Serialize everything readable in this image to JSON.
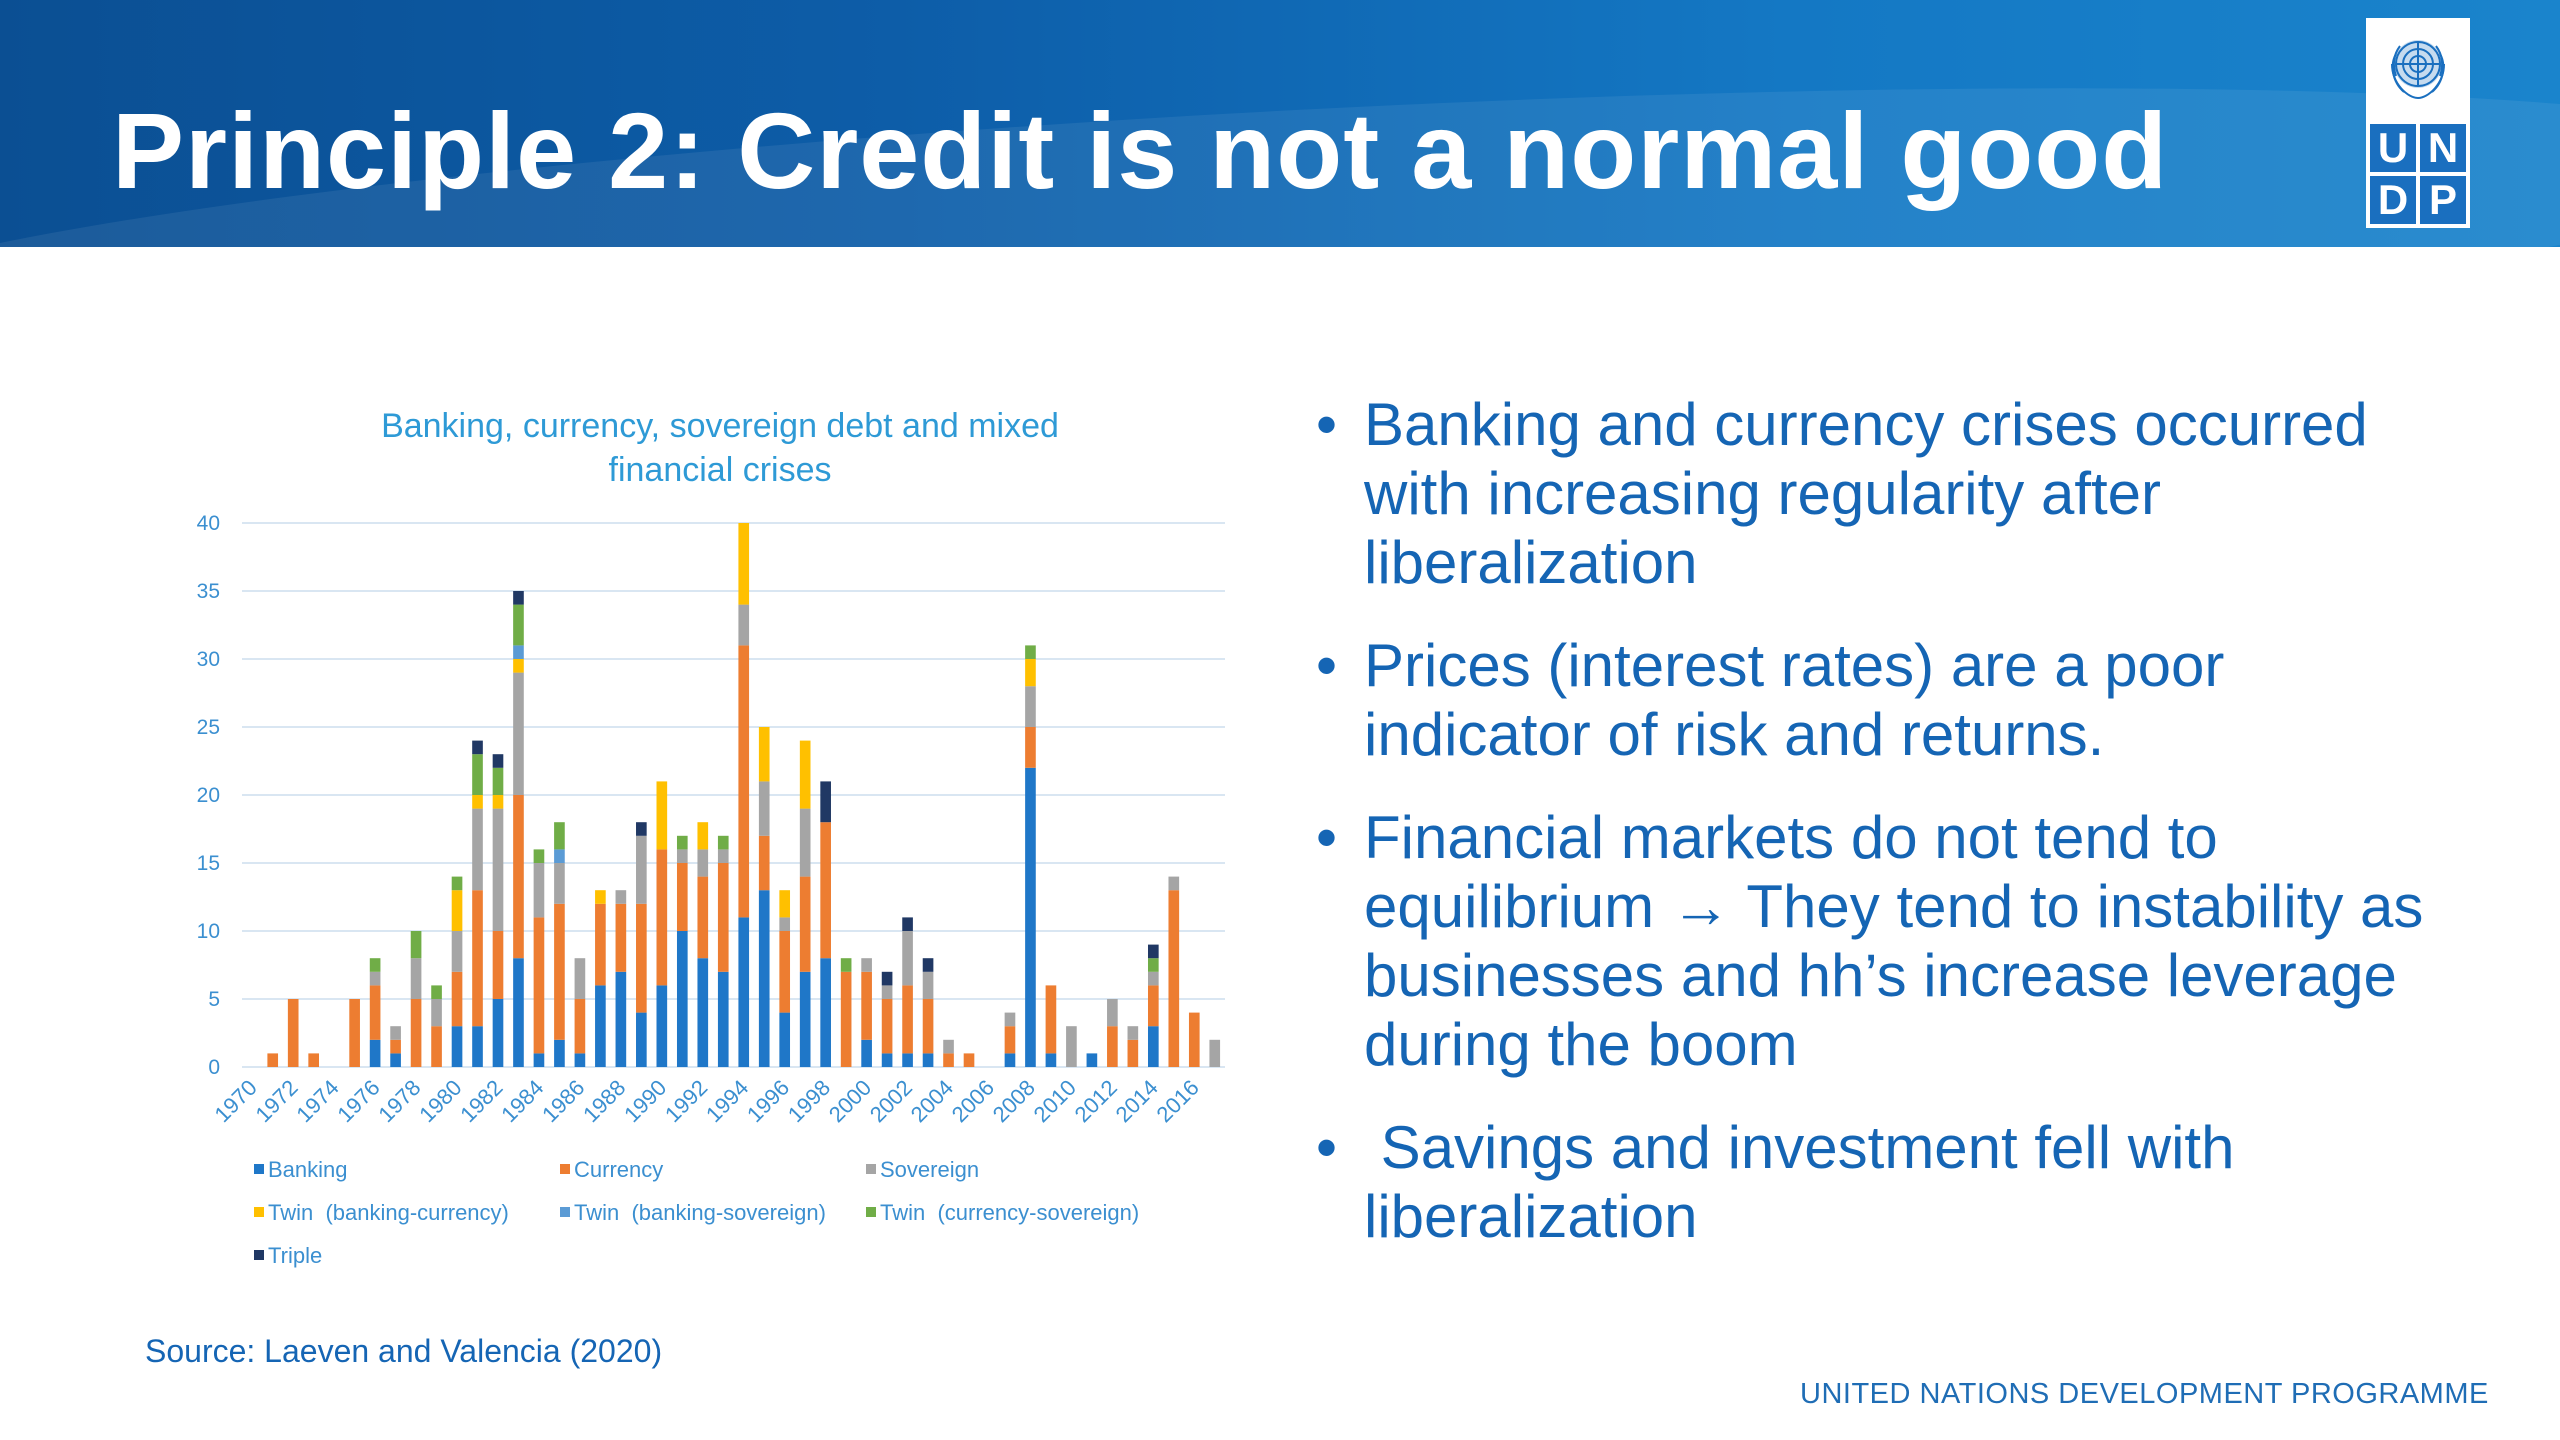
{
  "header": {
    "title": "Principle 2: Credit is not a normal good"
  },
  "logo": {
    "letters": [
      "U",
      "N",
      "D",
      "P"
    ]
  },
  "bullets": [
    "Banking and currency crises occurred with increasing regularity after liberalization",
    "Prices (interest rates) are a poor indicator of risk and returns.",
    "Financial markets do not tend to equilibrium → They tend to instability as businesses and hh’s increase leverage during the boom",
    " Savings and investment fell with liberalization"
  ],
  "bullet_symbol": "•",
  "source": "Source: Laeven and Valencia (2020)",
  "footer": "UNITED NATIONS DEVELOPMENT PROGRAMME",
  "chart_data": {
    "type": "bar",
    "stacked": true,
    "title": "Banking, currency, sovereign debt and mixed financial crises",
    "title_lines": [
      "Banking, currency, sovereign debt and mixed",
      "financial crises"
    ],
    "ylim": [
      0,
      40
    ],
    "yticks": [
      0,
      5,
      10,
      15,
      20,
      25,
      30,
      35,
      40
    ],
    "grid": true,
    "legend_position": "bottom",
    "categories": [
      1970,
      1971,
      1972,
      1973,
      1974,
      1975,
      1976,
      1977,
      1978,
      1979,
      1980,
      1981,
      1982,
      1983,
      1984,
      1985,
      1986,
      1987,
      1988,
      1989,
      1990,
      1991,
      1992,
      1993,
      1994,
      1995,
      1996,
      1997,
      1998,
      1999,
      2000,
      2001,
      2002,
      2003,
      2004,
      2005,
      2006,
      2007,
      2008,
      2009,
      2010,
      2011,
      2012,
      2013,
      2014,
      2015,
      2016,
      2017
    ],
    "xtick_labels": [
      "1970",
      "1972",
      "1974",
      "1976",
      "1978",
      "1980",
      "1982",
      "1984",
      "1986",
      "1988",
      "1990",
      "1992",
      "1994",
      "1996",
      "1998",
      "2000",
      "2002",
      "2004",
      "2006",
      "2008",
      "2010",
      "2012",
      "2014",
      "2016"
    ],
    "series": [
      {
        "name": "Banking",
        "color": "#1f77c8",
        "values": [
          0,
          0,
          0,
          0,
          0,
          0,
          2,
          1,
          0,
          0,
          3,
          3,
          5,
          8,
          1,
          2,
          1,
          6,
          7,
          4,
          6,
          10,
          8,
          7,
          11,
          13,
          4,
          7,
          8,
          0,
          2,
          1,
          1,
          1,
          0,
          0,
          0,
          1,
          22,
          1,
          0,
          1,
          0,
          0,
          3,
          0,
          0,
          0
        ]
      },
      {
        "name": "Currency",
        "color": "#ed7d31",
        "values": [
          0,
          1,
          5,
          1,
          0,
          5,
          4,
          1,
          5,
          3,
          4,
          10,
          5,
          12,
          10,
          10,
          4,
          6,
          5,
          8,
          10,
          5,
          6,
          8,
          20,
          4,
          6,
          7,
          10,
          7,
          5,
          4,
          5,
          4,
          1,
          1,
          0,
          2,
          3,
          5,
          0,
          0,
          3,
          2,
          3,
          13,
          4,
          0
        ]
      },
      {
        "name": "Sovereign",
        "color": "#a5a5a5",
        "values": [
          0,
          0,
          0,
          0,
          0,
          0,
          1,
          1,
          3,
          2,
          3,
          6,
          9,
          9,
          4,
          3,
          3,
          0,
          1,
          5,
          0,
          1,
          2,
          1,
          3,
          4,
          1,
          5,
          0,
          0,
          1,
          1,
          4,
          2,
          1,
          0,
          0,
          1,
          3,
          0,
          3,
          0,
          2,
          1,
          1,
          1,
          0,
          2
        ]
      },
      {
        "name": "Twin  (banking-currency)",
        "color": "#ffc000",
        "values": [
          0,
          0,
          0,
          0,
          0,
          0,
          0,
          0,
          0,
          0,
          3,
          1,
          1,
          1,
          0,
          0,
          0,
          1,
          0,
          0,
          5,
          0,
          2,
          0,
          6,
          4,
          2,
          5,
          0,
          0,
          0,
          0,
          0,
          0,
          0,
          0,
          0,
          0,
          2,
          0,
          0,
          0,
          0,
          0,
          0,
          0,
          0,
          0
        ]
      },
      {
        "name": "Twin  (banking-sovereign)",
        "color": "#5b9bd5",
        "values": [
          0,
          0,
          0,
          0,
          0,
          0,
          0,
          0,
          0,
          0,
          0,
          0,
          0,
          1,
          0,
          1,
          0,
          0,
          0,
          0,
          0,
          0,
          0,
          0,
          0,
          0,
          0,
          0,
          0,
          0,
          0,
          0,
          0,
          0,
          0,
          0,
          0,
          0,
          0,
          0,
          0,
          0,
          0,
          0,
          0,
          0,
          0,
          0
        ]
      },
      {
        "name": "Twin  (currency-sovereign)",
        "color": "#70ad47",
        "values": [
          0,
          0,
          0,
          0,
          0,
          0,
          1,
          0,
          2,
          1,
          1,
          3,
          2,
          3,
          1,
          2,
          0,
          0,
          0,
          0,
          0,
          1,
          0,
          1,
          0,
          0,
          0,
          0,
          0,
          1,
          0,
          0,
          0,
          0,
          0,
          0,
          0,
          0,
          1,
          0,
          0,
          0,
          0,
          0,
          1,
          0,
          0,
          0
        ]
      },
      {
        "name": "Triple",
        "color": "#203864",
        "values": [
          0,
          0,
          0,
          0,
          0,
          0,
          0,
          0,
          0,
          0,
          0,
          1,
          1,
          1,
          0,
          0,
          0,
          0,
          0,
          1,
          0,
          0,
          0,
          0,
          0,
          0,
          0,
          0,
          3,
          0,
          0,
          1,
          1,
          1,
          0,
          0,
          0,
          0,
          0,
          0,
          0,
          0,
          0,
          0,
          1,
          0,
          0,
          0
        ]
      }
    ]
  },
  "colors": {
    "title_blue": "#1565b4",
    "chart_title": "#2e9ad6",
    "axis_text": "#3b8fd0",
    "gridline": "#d9e6f2"
  },
  "icons": {
    "logo_emblem": "un-emblem-icon"
  }
}
